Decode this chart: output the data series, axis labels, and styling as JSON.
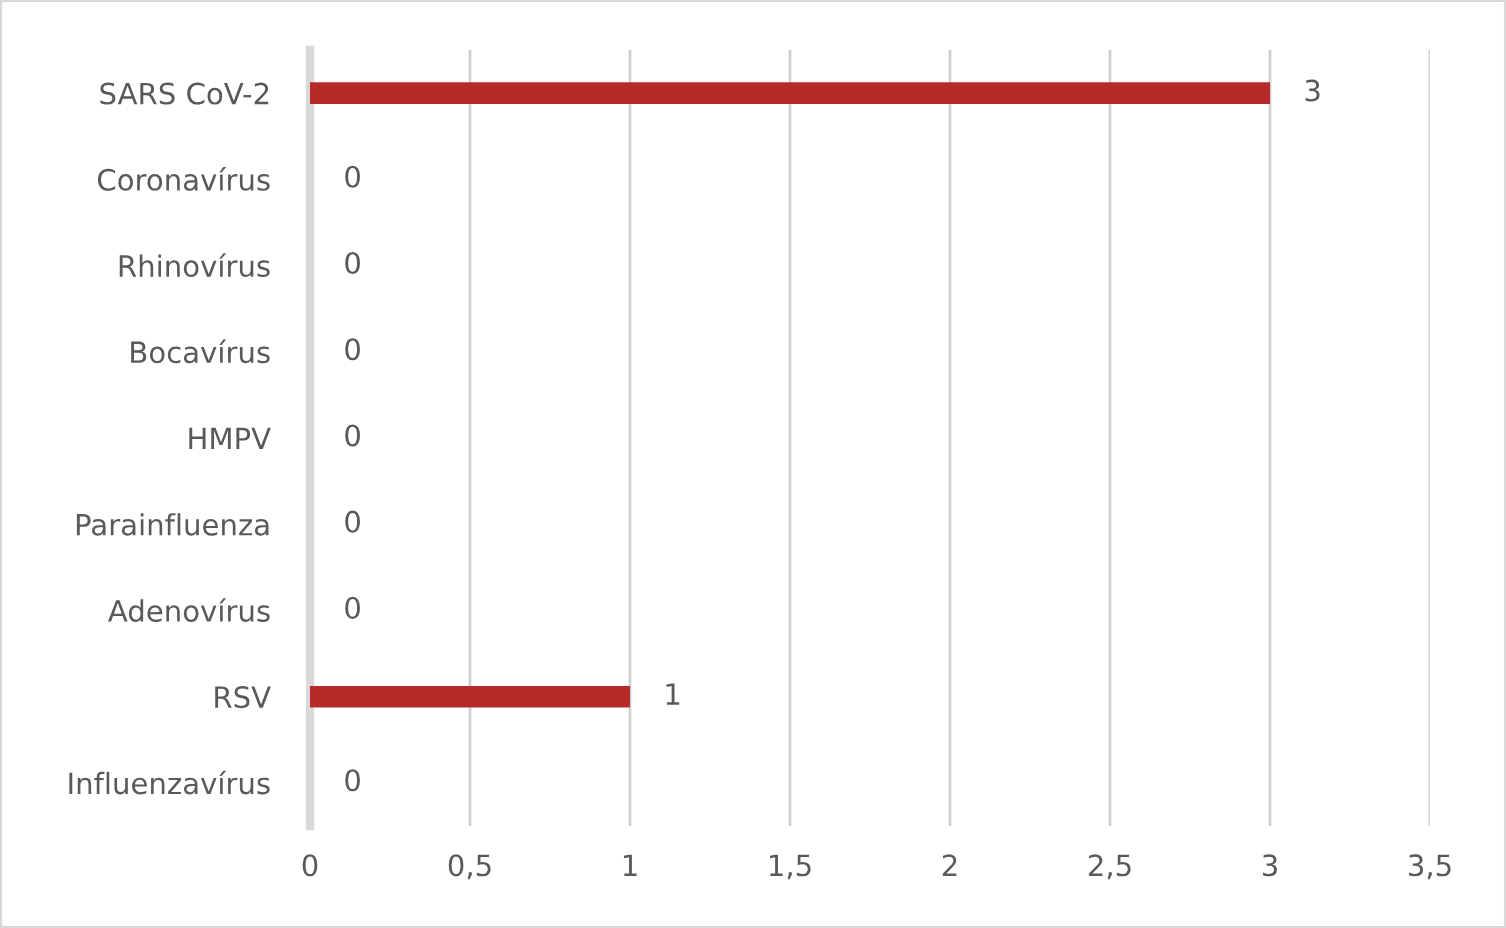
{
  "chart_data": {
    "type": "bar",
    "orientation": "horizontal",
    "categories": [
      "SARS CoV-2",
      "Coronavírus",
      "Rhinovírus",
      "Bocavírus",
      "HMPV",
      "Parainfluenza",
      "Adenovírus",
      "RSV",
      "Influenzavírus"
    ],
    "values": [
      3,
      0,
      0,
      0,
      0,
      0,
      0,
      1,
      0
    ],
    "color": "#b82a2a",
    "xlim": [
      0,
      3.5
    ],
    "xticks": [
      0,
      {
        "value": 0.5,
        "label": "0,5"
      },
      1,
      {
        "value": 1.5,
        "label": "1,5"
      },
      2,
      {
        "value": 2.5,
        "label": "2,5"
      },
      3,
      {
        "value": 3.5,
        "label": "3,5"
      }
    ],
    "grid": "x",
    "data_labels": true
  }
}
